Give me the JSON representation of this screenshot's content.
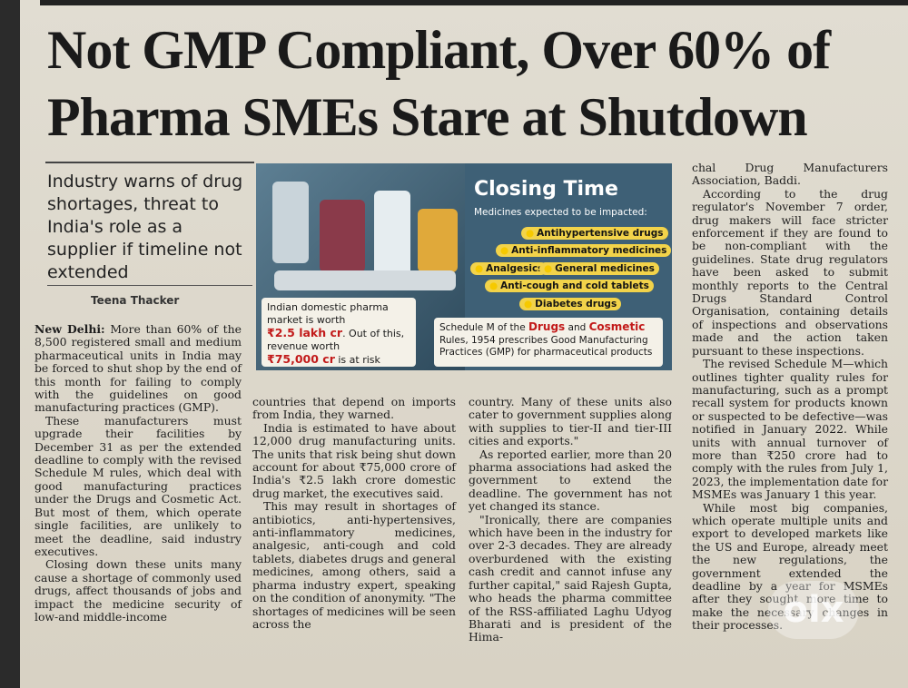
{
  "article": {
    "headline_line1": "Not GMP Compliant, Over 60% of",
    "headline_line2": "Pharma SMEs Stare at Shutdown",
    "deck": "Industry warns of drug shortages, threat to India's role as a supplier if timeline not extended",
    "byline": "Teena Thacker",
    "dateline": "New Delhi:",
    "col1": [
      "More than 60% of the 8,500 registered small and medium pharmaceutical units in India may be forced to shut shop by the end of this month for failing to comply with the guidelines on good manufacturing practices (GMP).",
      "These manufacturers must upgrade their facilities by December 31 as per the extended deadline to comply with the revised Schedule M rules, which deal with good manufacturing practices under the Drugs and Cosmetic Act. But most of them, which operate single facilities, are unlikely to meet the deadline, said industry executives.",
      "Closing down these units many cause a shortage of commonly used drugs, affect thousands of jobs and impact the medicine security of low-and middle-income"
    ],
    "col2": [
      "countries that depend on imports from India, they warned.",
      "India is estimated to have about 12,000 drug manufacturing units. The units that risk being shut down account for about ₹75,000 crore of India's ₹2.5 lakh crore domestic drug market, the executives said.",
      "This may result in shortages of antibiotics, anti-hypertensives, anti-inflammatory medicines, analgesic, anti-cough and cold tablets, diabetes drugs and general medicines, among others, said a pharma industry expert, speaking on the condition of anonymity. \"The shortages of medicines will be seen across the"
    ],
    "col3": [
      "country. Many of these units also cater to government supplies along with supplies to tier-II and tier-III cities and exports.\"",
      "As reported earlier, more than 20 pharma associations had asked the government to extend the deadline. The government has not yet changed its stance.",
      "\"Ironically, there are companies which have been in the industry for over 2-3 decades. They are already overburdened with the existing cash credit and cannot infuse any further capital,\" said Rajesh Gupta, who heads the pharma committee of the RSS-affiliated Laghu Udyog Bharati and is president of the Hima-"
    ],
    "col4": [
      "chal Drug Manufacturers Association, Baddi.",
      "According to the drug regulator's November 7 order, drug makers will face stricter enforcement if they are found to be non-compliant with the guidelines. State drug regulators have been asked to submit monthly reports to the Central Drugs Standard Control Organisation, containing details of inspections and observations made and the action taken pursuant to these inspections.",
      "The revised Schedule M—which outlines tighter quality rules for manufacturing, such as a prompt recall system for products known or suspected to be defective—was notified in January 2022. While units with annual turnover of more than ₹250 crore had to comply with the rules from July 1, 2023, the implementation date for MSMEs was January 1 this year.",
      "While most big companies, which operate multiple units and export to developed markets like the US and Europe, already meet the new regulations, the government extended the deadline by a year for MSMEs after they sought more time to make the necessary changes in their processes."
    ]
  },
  "graphic": {
    "title": "Closing Time",
    "subtitle": "Medicines expected to be impacted:",
    "items": [
      "Antihypertensive drugs",
      "Anti-inflammatory medicines",
      "Analgesics",
      "General medicines",
      "Anti-cough and cold tablets",
      "Diabetes drugs"
    ],
    "box_left_a": "Indian domestic pharma market is worth",
    "box_left_b": "₹2.5 lakh cr",
    "box_left_c": ". Out of this, revenue worth",
    "box_left_d": "₹75,000 cr",
    "box_left_e": " is at risk",
    "box_right_a": "Schedule M of the ",
    "box_right_b": "Drugs",
    "box_right_c": " and ",
    "box_right_d": "Cosmetic",
    "box_right_e": " Rules, 1954 prescribes Good Manufacturing Practices (GMP) for pharmaceutical products"
  },
  "watermark": "olx"
}
